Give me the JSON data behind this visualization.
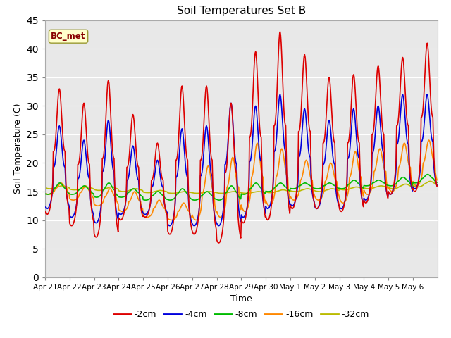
{
  "title": "Soil Temperatures Set B",
  "xlabel": "Time",
  "ylabel": "Soil Temperature (C)",
  "ylim": [
    0,
    45
  ],
  "yticks": [
    0,
    5,
    10,
    15,
    20,
    25,
    30,
    35,
    40,
    45
  ],
  "label_text": "BC_met",
  "series_colors": {
    "-2cm": "#dd0000",
    "-4cm": "#0000dd",
    "-8cm": "#00bb00",
    "-16cm": "#ff8800",
    "-32cm": "#bbbb00"
  },
  "series_lw": 1.2,
  "x_tick_labels": [
    "Apr 21",
    "Apr 22",
    "Apr 23",
    "Apr 24",
    "Apr 25",
    "Apr 26",
    "Apr 27",
    "Apr 28",
    "Apr 29",
    "Apr 30",
    "May 1",
    "May 2",
    "May 3",
    "May 4",
    "May 5",
    "May 6"
  ],
  "n_days": 16,
  "pts_per_day": 48,
  "day_peaks_2cm": [
    33.0,
    30.5,
    34.5,
    28.5,
    23.5,
    33.5,
    33.5,
    30.5,
    39.5,
    43.0,
    39.0,
    35.0,
    35.5,
    37.0,
    38.5,
    41.0
  ],
  "day_troughs_2cm": [
    11.0,
    9.0,
    7.0,
    10.0,
    10.5,
    7.5,
    7.5,
    6.0,
    9.5,
    10.0,
    12.0,
    12.0,
    11.5,
    13.0,
    14.5,
    15.0
  ],
  "day_peaks_4cm": [
    26.5,
    24.0,
    27.5,
    23.0,
    20.5,
    26.0,
    26.5,
    30.5,
    30.0,
    32.0,
    29.5,
    27.5,
    29.5,
    30.0,
    32.0,
    32.0
  ],
  "day_troughs_4cm": [
    12.0,
    10.5,
    9.5,
    11.0,
    11.0,
    9.0,
    9.0,
    9.0,
    10.5,
    12.0,
    12.5,
    12.0,
    12.0,
    13.5,
    14.5,
    15.5
  ],
  "day_peaks_8cm": [
    16.5,
    16.0,
    16.5,
    15.5,
    15.0,
    15.5,
    15.0,
    16.0,
    16.5,
    16.5,
    16.5,
    16.5,
    17.0,
    17.0,
    17.5,
    18.0
  ],
  "day_troughs_8cm": [
    14.5,
    14.5,
    14.0,
    14.0,
    13.5,
    13.5,
    13.5,
    13.5,
    14.5,
    15.0,
    15.5,
    15.5,
    15.5,
    16.0,
    16.0,
    16.5
  ],
  "day_peaks_16cm": [
    16.5,
    16.0,
    15.5,
    15.0,
    13.5,
    13.0,
    19.5,
    21.0,
    23.5,
    22.5,
    20.5,
    20.0,
    22.0,
    22.5,
    23.5,
    24.0
  ],
  "day_troughs_16cm": [
    14.5,
    13.5,
    12.5,
    11.5,
    10.5,
    10.0,
    10.0,
    10.5,
    11.5,
    12.5,
    13.5,
    13.5,
    13.0,
    14.5,
    15.0,
    16.0
  ],
  "day_peaks_32cm": [
    16.0,
    15.8,
    15.8,
    15.5,
    15.2,
    15.0,
    15.0,
    15.0,
    15.0,
    15.3,
    15.5,
    15.5,
    15.8,
    16.0,
    16.3,
    16.8
  ],
  "day_troughs_32cm": [
    15.5,
    15.3,
    15.2,
    15.0,
    14.8,
    14.7,
    14.7,
    14.7,
    14.7,
    14.8,
    15.0,
    15.0,
    15.3,
    15.5,
    15.5,
    15.8
  ],
  "peak_phase": 0.58,
  "sharpness": 3.0
}
